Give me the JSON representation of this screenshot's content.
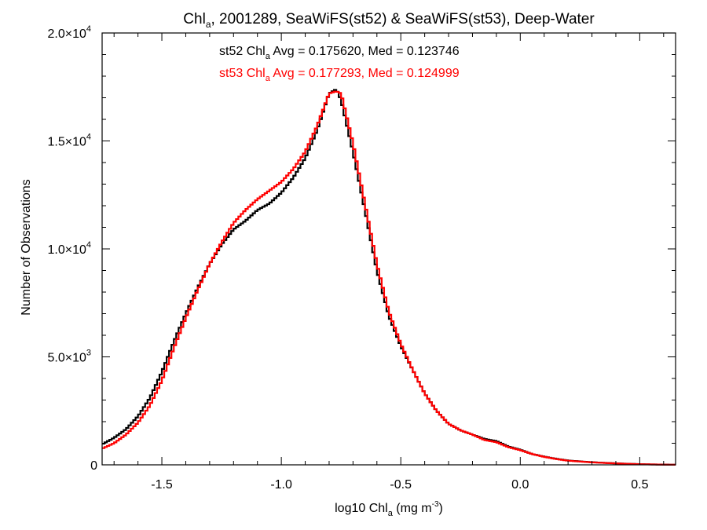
{
  "chart_data": {
    "type": "line",
    "title": {
      "main": "Chl",
      "sub": "a",
      "rest": ", 2001289, SeaWiFS(st52) & SeaWiFS(st53), Deep-Water"
    },
    "xlabel": {
      "main": "log10 Chl",
      "sub": "a",
      "rest": " (mg m",
      "sup": "-3",
      "end": ")"
    },
    "ylabel": "Number of Observations",
    "xlim": [
      -1.75,
      0.65
    ],
    "ylim": [
      0,
      20000
    ],
    "xticks": [
      {
        "value": -1.5,
        "label": "-1.5"
      },
      {
        "value": -1.0,
        "label": "-1.0"
      },
      {
        "value": -0.5,
        "label": "-0.5"
      },
      {
        "value": 0.0,
        "label": "0.0"
      },
      {
        "value": 0.5,
        "label": "0.5"
      }
    ],
    "yticks": [
      {
        "value": 0,
        "mantissa": "0",
        "exp": ""
      },
      {
        "value": 5000,
        "mantissa": "5.0×10",
        "exp": "3"
      },
      {
        "value": 10000,
        "mantissa": "1.0×10",
        "exp": "4"
      },
      {
        "value": 15000,
        "mantissa": "1.5×10",
        "exp": "4"
      },
      {
        "value": 20000,
        "mantissa": "2.0×10",
        "exp": "4"
      }
    ],
    "annotations": [
      {
        "prefix": "st52 Chl",
        "sub": "a",
        "text": " Avg = 0.175620, Med = 0.123746",
        "color": "#000000"
      },
      {
        "prefix": "st53 Chl",
        "sub": "a",
        "text": " Avg = 0.177293, Med = 0.124999",
        "color": "#ff0000"
      }
    ],
    "series": [
      {
        "color": "#000000",
        "points": [
          [
            -1.75,
            950
          ],
          [
            -1.7,
            1250
          ],
          [
            -1.65,
            1650
          ],
          [
            -1.6,
            2250
          ],
          [
            -1.55,
            3100
          ],
          [
            -1.5,
            4300
          ],
          [
            -1.45,
            5700
          ],
          [
            -1.4,
            7000
          ],
          [
            -1.35,
            8200
          ],
          [
            -1.3,
            9300
          ],
          [
            -1.25,
            10200
          ],
          [
            -1.2,
            10900
          ],
          [
            -1.15,
            11300
          ],
          [
            -1.1,
            11800
          ],
          [
            -1.05,
            12100
          ],
          [
            -1.0,
            12600
          ],
          [
            -0.95,
            13300
          ],
          [
            -0.9,
            14200
          ],
          [
            -0.85,
            15500
          ],
          [
            -0.8,
            17200
          ],
          [
            -0.77,
            17400
          ],
          [
            -0.75,
            16900
          ],
          [
            -0.7,
            14500
          ],
          [
            -0.65,
            11800
          ],
          [
            -0.6,
            9000
          ],
          [
            -0.55,
            6900
          ],
          [
            -0.5,
            5500
          ],
          [
            -0.45,
            4400
          ],
          [
            -0.4,
            3300
          ],
          [
            -0.35,
            2500
          ],
          [
            -0.3,
            1900
          ],
          [
            -0.25,
            1600
          ],
          [
            -0.2,
            1400
          ],
          [
            -0.15,
            1200
          ],
          [
            -0.1,
            1100
          ],
          [
            -0.05,
            850
          ],
          [
            0.0,
            700
          ],
          [
            0.05,
            500
          ],
          [
            0.1,
            380
          ],
          [
            0.15,
            280
          ],
          [
            0.2,
            200
          ],
          [
            0.3,
            120
          ],
          [
            0.4,
            70
          ],
          [
            0.5,
            30
          ],
          [
            0.6,
            10
          ],
          [
            0.65,
            5
          ]
        ]
      },
      {
        "color": "#ff0000",
        "points": [
          [
            -1.75,
            750
          ],
          [
            -1.7,
            1000
          ],
          [
            -1.65,
            1400
          ],
          [
            -1.6,
            1950
          ],
          [
            -1.55,
            2750
          ],
          [
            -1.5,
            3900
          ],
          [
            -1.45,
            5400
          ],
          [
            -1.4,
            6800
          ],
          [
            -1.35,
            8100
          ],
          [
            -1.3,
            9300
          ],
          [
            -1.25,
            10300
          ],
          [
            -1.2,
            11200
          ],
          [
            -1.15,
            11800
          ],
          [
            -1.1,
            12300
          ],
          [
            -1.05,
            12700
          ],
          [
            -1.0,
            13100
          ],
          [
            -0.95,
            13700
          ],
          [
            -0.9,
            14500
          ],
          [
            -0.85,
            15700
          ],
          [
            -0.8,
            17200
          ],
          [
            -0.77,
            17300
          ],
          [
            -0.75,
            17200
          ],
          [
            -0.7,
            14900
          ],
          [
            -0.65,
            12100
          ],
          [
            -0.6,
            9300
          ],
          [
            -0.55,
            7100
          ],
          [
            -0.5,
            5600
          ],
          [
            -0.45,
            4400
          ],
          [
            -0.4,
            3300
          ],
          [
            -0.35,
            2500
          ],
          [
            -0.3,
            1900
          ],
          [
            -0.25,
            1600
          ],
          [
            -0.2,
            1400
          ],
          [
            -0.15,
            1150
          ],
          [
            -0.1,
            1050
          ],
          [
            -0.05,
            820
          ],
          [
            0.0,
            680
          ],
          [
            0.05,
            500
          ],
          [
            0.1,
            370
          ],
          [
            0.15,
            270
          ],
          [
            0.2,
            190
          ],
          [
            0.3,
            115
          ],
          [
            0.4,
            65
          ],
          [
            0.5,
            28
          ],
          [
            0.6,
            9
          ],
          [
            0.65,
            5
          ]
        ]
      }
    ]
  }
}
